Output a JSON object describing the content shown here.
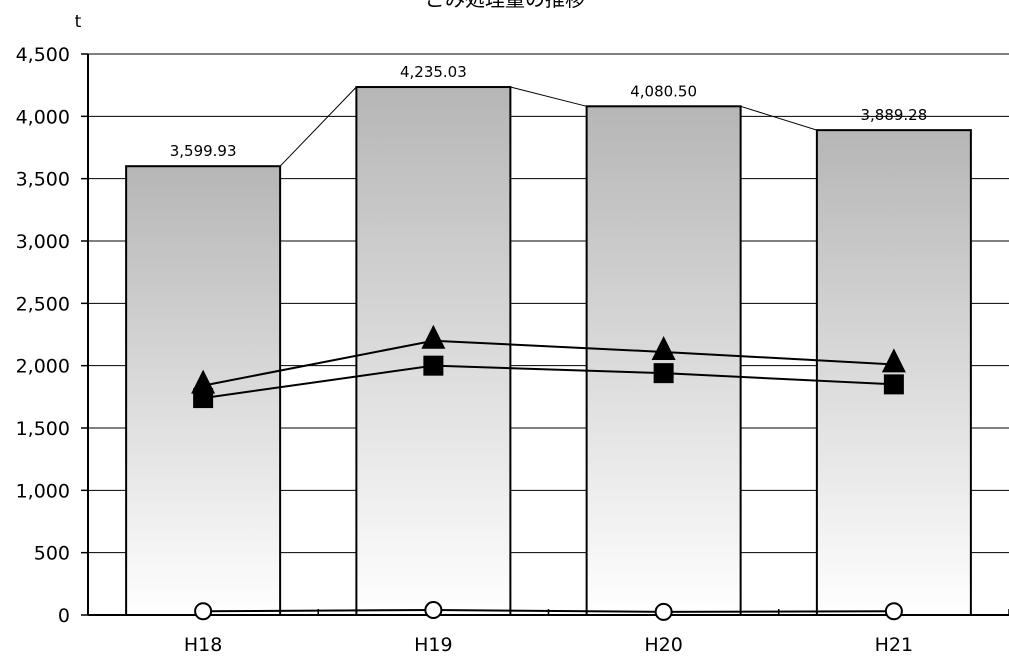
{
  "chart_data": {
    "type": "bar",
    "title": "ごみ処理量の推移",
    "ylabel": "t",
    "xlabel": "",
    "categories": [
      "H18",
      "H19",
      "H20",
      "H21"
    ],
    "ylim": [
      0,
      4500
    ],
    "yticks": [
      0,
      500,
      1000,
      1500,
      2000,
      2500,
      3000,
      3500,
      4000,
      4500
    ],
    "ytick_labels": [
      "0",
      "500",
      "1,000",
      "1,500",
      "2,000",
      "2,500",
      "3,000",
      "3,500",
      "4,000",
      "4,500"
    ],
    "grid": true,
    "legend": "none",
    "series": [
      {
        "kind": "bar",
        "values": [
          3599.93,
          4235.03,
          4080.5,
          3889.28
        ],
        "labels": [
          "3,599.93",
          "4,235.03",
          "4,080.50",
          "3,889.28"
        ],
        "color": "#b8b8b8"
      },
      {
        "kind": "line",
        "marker": "triangle",
        "values": [
          1840,
          2200,
          2110,
          2010
        ],
        "color": "#000000"
      },
      {
        "kind": "line",
        "marker": "square",
        "values": [
          1740,
          2000,
          1940,
          1850
        ],
        "color": "#000000"
      },
      {
        "kind": "line",
        "marker": "circle-open",
        "values": [
          30,
          40,
          25,
          30
        ],
        "color": "#000000"
      }
    ]
  }
}
